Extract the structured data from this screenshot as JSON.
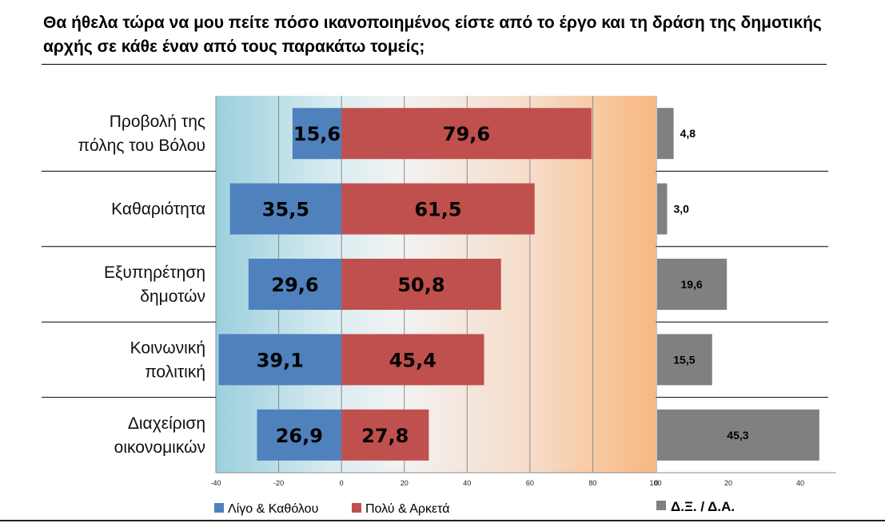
{
  "title": "Θα ήθελα τώρα να μου πείτε πόσο ικανοποιημένος είστε από το έργο και τη δράση της δημοτικής αρχής σε κάθε έναν από τους παρακάτω τομείς;",
  "chart_data": [
    {
      "type": "bar",
      "orientation": "horizontal-diverging",
      "categories": [
        [
          "Προβολή της",
          "πόλης του Βόλου"
        ],
        [
          "Καθαριότητα"
        ],
        [
          "Εξυπηρέτηση",
          "δημοτών"
        ],
        [
          "Κοινωνική",
          "πολιτική"
        ],
        [
          "Διαχείριση",
          "οικονομικών"
        ]
      ],
      "series": [
        {
          "name": "Λίγο & Καθόλου",
          "values": [
            15.6,
            35.5,
            29.6,
            39.1,
            26.9
          ],
          "labels": [
            "15,6",
            "35,5",
            "29,6",
            "39,1",
            "26,9"
          ],
          "direction": "negative",
          "color": "#4f81bd"
        },
        {
          "name": "Πολύ & Αρκετά",
          "values": [
            79.6,
            61.5,
            50.8,
            45.4,
            27.8
          ],
          "labels": [
            "79,6",
            "61,5",
            "50,8",
            "45,4",
            "27,8"
          ],
          "direction": "positive",
          "color": "#c0504d"
        }
      ],
      "xlim": [
        -40,
        100
      ],
      "xticks": [
        "-40",
        "-20",
        "0",
        "20",
        "40",
        "60",
        "80",
        "100"
      ],
      "grid": true
    },
    {
      "type": "bar",
      "orientation": "horizontal",
      "series": [
        {
          "name": "Δ.Ξ. / Δ.Α.",
          "values": [
            4.8,
            3.0,
            19.6,
            15.5,
            45.3
          ],
          "labels": [
            "4,8",
            "3,0",
            "19,6",
            "15,5",
            "45,3"
          ],
          "color": "#808080"
        }
      ],
      "xlim": [
        0,
        50
      ],
      "xticks": [
        "0",
        "20",
        "40"
      ]
    }
  ]
}
